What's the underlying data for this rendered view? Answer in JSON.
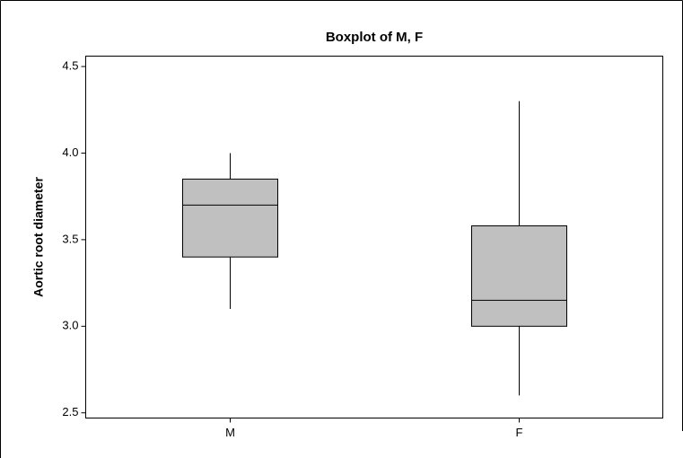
{
  "chart_data": {
    "type": "boxplot",
    "title": "Boxplot of M, F",
    "y_label": "Aortic root diameter",
    "categories": [
      "M",
      "F"
    ],
    "whisker_low": [
      3.1,
      2.6
    ],
    "q1": [
      3.4,
      3.0
    ],
    "median": [
      3.7,
      3.15
    ],
    "q3": [
      3.85,
      3.58
    ],
    "whisker_high": [
      4.0,
      4.3
    ],
    "color": "#c0c0c0",
    "ylim": [
      2.47,
      4.56
    ],
    "yticks": [
      {
        "value": 2.5,
        "label": "2.5"
      },
      {
        "value": 3,
        "label": "3.0"
      },
      {
        "value": 3.5,
        "label": "3.5"
      },
      {
        "value": 4,
        "label": "4.0"
      },
      {
        "value": 4.5,
        "label": "4.5"
      }
    ]
  }
}
